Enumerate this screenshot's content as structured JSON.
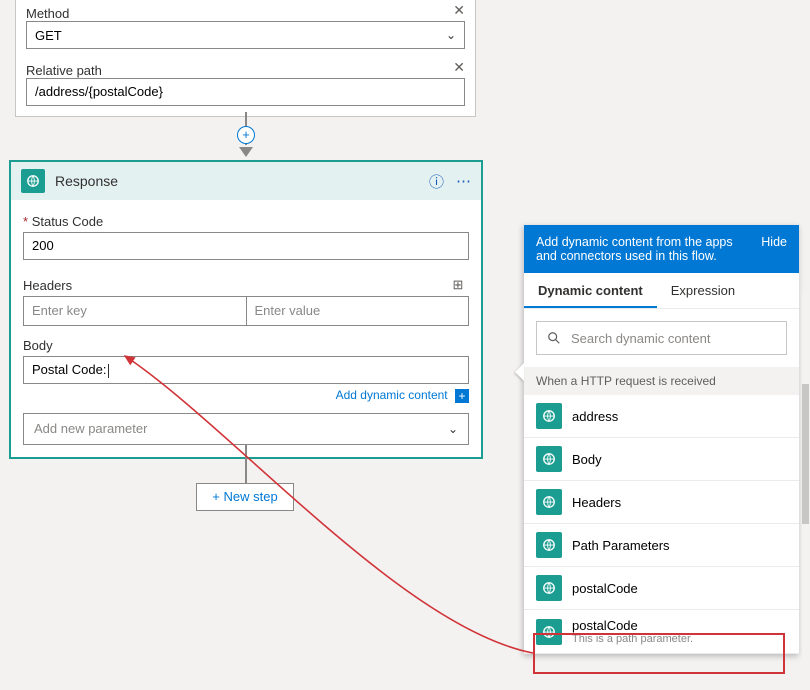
{
  "request": {
    "method_label": "Method",
    "method_value": "GET",
    "path_label": "Relative path",
    "path_value": "/address/{postalCode}"
  },
  "response": {
    "title": "Response",
    "status_label": "Status Code",
    "status_value": "200",
    "headers_label": "Headers",
    "key_ph": "Enter key",
    "val_ph": "Enter value",
    "body_label": "Body",
    "body_value": "Postal Code:",
    "add_dyn": "Add dynamic content",
    "new_param_ph": "Add new parameter"
  },
  "new_step": "+ New step",
  "dyn": {
    "head_text": "Add dynamic content from the apps and connectors used in this flow.",
    "hide": "Hide",
    "tab1": "Dynamic content",
    "tab2": "Expression",
    "search_ph": "Search dynamic content",
    "section": "When a HTTP request is received",
    "items": [
      {
        "label": "address"
      },
      {
        "label": "Body"
      },
      {
        "label": "Headers"
      },
      {
        "label": "Path Parameters"
      },
      {
        "label": "postalCode"
      },
      {
        "label": "postalCode",
        "sub": "This is a path parameter."
      }
    ]
  },
  "colors": {
    "accent": "#1b9e91",
    "brand": "#0078d4",
    "red": "#d13438"
  }
}
